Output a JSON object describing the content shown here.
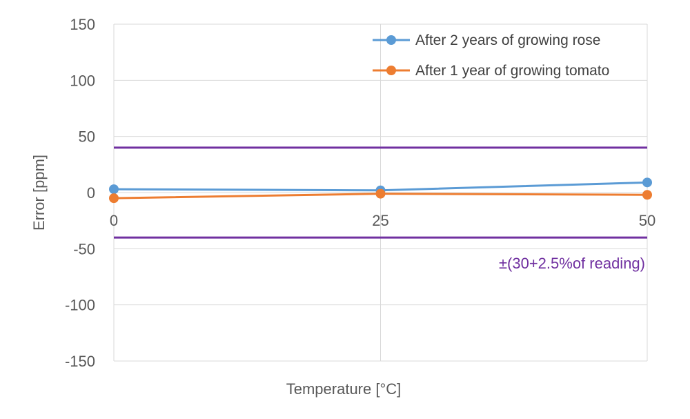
{
  "chart_data": {
    "type": "line",
    "title": "",
    "xlabel": "Temperature [°C]",
    "ylabel": "Error [ppm]",
    "x": [
      0,
      25,
      50
    ],
    "x_tick_labels": [
      "0",
      "25",
      "50"
    ],
    "y_tick_labels": [
      "150",
      "100",
      "50",
      "0",
      "-50",
      "-100",
      "-150"
    ],
    "y_ticks": [
      150,
      100,
      50,
      0,
      -50,
      -100,
      -150
    ],
    "xlim": [
      0,
      50
    ],
    "ylim": [
      -150,
      150
    ],
    "grid": true,
    "legend_position": "top-right",
    "series": [
      {
        "name": "After 2 years of growing rose",
        "color": "#5b9bd5",
        "values": [
          3,
          2,
          9
        ]
      },
      {
        "name": "After 1 year of growing tomato",
        "color": "#ed7d31",
        "values": [
          -5,
          -1,
          -2
        ]
      }
    ],
    "limit_lines": {
      "values": [
        40,
        -40
      ],
      "color": "#7030a0"
    },
    "annotation": "±(30+2.5%of reading)"
  }
}
